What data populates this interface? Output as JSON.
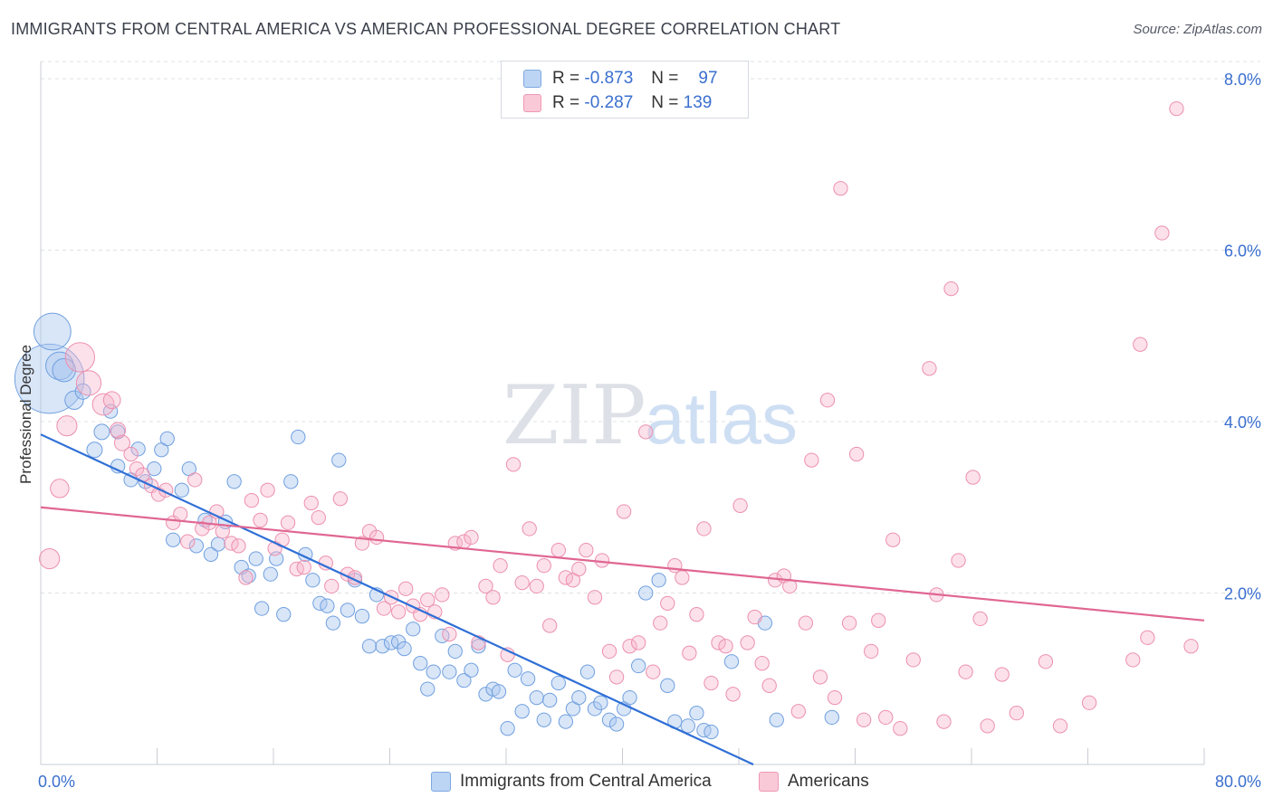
{
  "title": "IMMIGRANTS FROM CENTRAL AMERICA VS AMERICAN PROFESSIONAL DEGREE CORRELATION CHART",
  "source": "Source: ZipAtlas.com",
  "watermark": {
    "zip": "ZIP",
    "atlas": "atlas"
  },
  "stats": [
    {
      "r_label": "R =",
      "r_value": "-0.873",
      "n_label": "N =",
      "n_value": "97",
      "color": "#a9c8f2"
    },
    {
      "r_label": "R =",
      "r_value": "-0.287",
      "n_label": "N =",
      "n_value": "139",
      "color": "#f7bccf"
    }
  ],
  "chart_data": {
    "type": "scatter",
    "title": "IMMIGRANTS FROM CENTRAL AMERICA VS AMERICAN PROFESSIONAL DEGREE CORRELATION CHART",
    "xlabel": "",
    "ylabel": "Professional Degree",
    "xlim": [
      0,
      80
    ],
    "ylim": [
      0,
      8.2
    ],
    "x_tick_labels": [
      "0.0%",
      "80.0%"
    ],
    "y_ticks": [
      2,
      4,
      6,
      8
    ],
    "y_tick_labels": [
      "2.0%",
      "4.0%",
      "6.0%",
      "8.0%"
    ],
    "grid": true,
    "legend_position": "bottom",
    "series": [
      {
        "name": "Immigrants from Central America",
        "color": "#8ab4ea",
        "trend": [
          [
            0,
            3.85
          ],
          [
            49,
            0
          ]
        ],
        "points": [
          [
            0.6,
            4.5,
            4.5
          ],
          [
            0.8,
            5.05,
            2.4
          ],
          [
            1.3,
            4.65,
            1.8
          ],
          [
            1.6,
            4.6,
            1.5
          ],
          [
            2.3,
            4.25,
            1.2
          ],
          [
            2.9,
            4.35,
            1.0
          ],
          [
            3.7,
            3.67,
            1.0
          ],
          [
            4.2,
            3.88,
            1.0
          ],
          [
            4.8,
            4.12,
            0.9
          ],
          [
            5.3,
            3.88,
            0.9
          ],
          [
            5.3,
            3.48,
            0.9
          ],
          [
            6.2,
            3.32,
            0.9
          ],
          [
            6.7,
            3.68,
            0.9
          ],
          [
            7.2,
            3.3,
            0.9
          ],
          [
            7.8,
            3.45,
            0.9
          ],
          [
            8.3,
            3.67,
            0.9
          ],
          [
            8.7,
            3.8,
            0.9
          ],
          [
            9.1,
            2.62,
            0.9
          ],
          [
            9.7,
            3.2,
            0.9
          ],
          [
            10.2,
            3.45,
            0.9
          ],
          [
            10.7,
            2.55,
            0.9
          ],
          [
            11.3,
            2.85,
            0.9
          ],
          [
            11.7,
            2.45,
            0.9
          ],
          [
            12.2,
            2.57,
            0.9
          ],
          [
            12.7,
            2.83,
            0.9
          ],
          [
            13.3,
            3.3,
            0.9
          ],
          [
            13.8,
            2.3,
            0.9
          ],
          [
            14.3,
            2.2,
            0.9
          ],
          [
            14.8,
            2.4,
            0.9
          ],
          [
            15.2,
            1.82,
            0.9
          ],
          [
            15.8,
            2.22,
            0.9
          ],
          [
            16.2,
            2.4,
            0.9
          ],
          [
            16.7,
            1.75,
            0.9
          ],
          [
            17.2,
            3.3,
            0.9
          ],
          [
            17.7,
            3.82,
            0.9
          ],
          [
            18.2,
            2.45,
            0.9
          ],
          [
            18.7,
            2.15,
            0.9
          ],
          [
            19.2,
            1.88,
            0.9
          ],
          [
            19.7,
            1.85,
            0.9
          ],
          [
            20.1,
            1.65,
            0.9
          ],
          [
            20.5,
            3.55,
            0.9
          ],
          [
            21.1,
            1.8,
            0.9
          ],
          [
            21.6,
            2.15,
            0.9
          ],
          [
            22.1,
            1.73,
            0.9
          ],
          [
            22.6,
            1.38,
            0.9
          ],
          [
            23.1,
            1.98,
            0.9
          ],
          [
            23.5,
            1.38,
            0.9
          ],
          [
            24.1,
            1.42,
            0.9
          ],
          [
            24.6,
            1.43,
            0.9
          ],
          [
            25.0,
            1.35,
            0.9
          ],
          [
            25.6,
            1.58,
            0.9
          ],
          [
            26.1,
            1.18,
            0.9
          ],
          [
            26.6,
            0.88,
            0.9
          ],
          [
            27.0,
            1.08,
            0.9
          ],
          [
            27.6,
            1.5,
            0.9
          ],
          [
            28.1,
            1.08,
            0.9
          ],
          [
            28.5,
            1.32,
            0.9
          ],
          [
            29.1,
            0.98,
            0.9
          ],
          [
            29.6,
            1.1,
            0.9
          ],
          [
            30.1,
            1.38,
            0.9
          ],
          [
            30.6,
            0.82,
            0.9
          ],
          [
            31.1,
            0.88,
            0.9
          ],
          [
            31.5,
            0.85,
            0.9
          ],
          [
            32.1,
            0.42,
            0.9
          ],
          [
            32.6,
            1.1,
            0.9
          ],
          [
            33.1,
            0.62,
            0.9
          ],
          [
            33.5,
            1.0,
            0.9
          ],
          [
            34.1,
            0.78,
            0.9
          ],
          [
            34.6,
            0.52,
            0.9
          ],
          [
            35.0,
            0.75,
            0.9
          ],
          [
            35.6,
            0.95,
            0.9
          ],
          [
            36.1,
            0.5,
            0.9
          ],
          [
            36.6,
            0.65,
            0.9
          ],
          [
            37.0,
            0.78,
            0.9
          ],
          [
            37.6,
            1.08,
            0.9
          ],
          [
            38.1,
            0.65,
            0.9
          ],
          [
            38.5,
            0.72,
            0.9
          ],
          [
            39.1,
            0.52,
            0.9
          ],
          [
            39.6,
            0.47,
            0.9
          ],
          [
            40.1,
            0.65,
            0.9
          ],
          [
            40.5,
            0.78,
            0.9
          ],
          [
            41.1,
            1.15,
            0.9
          ],
          [
            41.6,
            2.0,
            0.9
          ],
          [
            42.5,
            2.15,
            0.9
          ],
          [
            43.1,
            0.92,
            0.9
          ],
          [
            43.6,
            0.5,
            0.9
          ],
          [
            44.5,
            0.45,
            0.9
          ],
          [
            45.1,
            0.6,
            0.9
          ],
          [
            45.6,
            0.4,
            0.9
          ],
          [
            46.1,
            0.38,
            0.9
          ],
          [
            47.5,
            1.2,
            0.9
          ],
          [
            49.8,
            1.65,
            0.9
          ],
          [
            50.6,
            0.52,
            0.9
          ],
          [
            54.4,
            0.55,
            0.9
          ]
        ]
      },
      {
        "name": "Americans",
        "color": "#f2a3bd",
        "trend": [
          [
            0,
            3.0
          ],
          [
            80,
            1.68
          ]
        ],
        "points": [
          [
            0.6,
            2.4,
            1.3
          ],
          [
            1.3,
            3.22,
            1.2
          ],
          [
            1.8,
            3.95,
            1.3
          ],
          [
            2.7,
            4.75,
            1.9
          ],
          [
            3.3,
            4.45,
            1.6
          ],
          [
            4.3,
            4.2,
            1.4
          ],
          [
            4.9,
            4.25,
            1.1
          ],
          [
            5.3,
            3.9,
            1.0
          ],
          [
            5.6,
            3.75,
            1.0
          ],
          [
            6.2,
            3.62,
            0.9
          ],
          [
            6.6,
            3.45,
            0.9
          ],
          [
            7.0,
            3.38,
            0.9
          ],
          [
            7.6,
            3.25,
            0.9
          ],
          [
            8.1,
            3.15,
            0.9
          ],
          [
            8.6,
            3.2,
            0.9
          ],
          [
            9.1,
            2.82,
            0.9
          ],
          [
            9.6,
            2.92,
            0.9
          ],
          [
            10.1,
            2.6,
            0.9
          ],
          [
            10.6,
            3.32,
            0.9
          ],
          [
            11.1,
            2.75,
            0.9
          ],
          [
            11.6,
            2.82,
            0.9
          ],
          [
            12.1,
            2.95,
            0.9
          ],
          [
            12.5,
            2.72,
            0.9
          ],
          [
            13.1,
            2.58,
            0.9
          ],
          [
            13.6,
            2.55,
            0.9
          ],
          [
            14.1,
            2.18,
            0.9
          ],
          [
            14.5,
            3.08,
            0.9
          ],
          [
            15.1,
            2.85,
            0.9
          ],
          [
            15.6,
            3.2,
            0.9
          ],
          [
            16.1,
            2.52,
            0.9
          ],
          [
            16.6,
            2.62,
            0.9
          ],
          [
            17.0,
            2.82,
            0.9
          ],
          [
            17.6,
            2.28,
            0.9
          ],
          [
            18.1,
            2.3,
            0.9
          ],
          [
            18.6,
            3.05,
            0.9
          ],
          [
            19.1,
            2.88,
            0.9
          ],
          [
            19.6,
            2.35,
            0.9
          ],
          [
            20.0,
            2.08,
            0.9
          ],
          [
            20.6,
            3.1,
            0.9
          ],
          [
            21.1,
            2.22,
            0.9
          ],
          [
            21.6,
            2.18,
            0.9
          ],
          [
            22.1,
            2.58,
            0.9
          ],
          [
            22.6,
            2.72,
            0.9
          ],
          [
            23.1,
            2.65,
            0.9
          ],
          [
            23.6,
            1.82,
            0.9
          ],
          [
            24.1,
            1.95,
            0.9
          ],
          [
            24.6,
            1.78,
            0.9
          ],
          [
            25.1,
            2.05,
            0.9
          ],
          [
            25.6,
            1.85,
            0.9
          ],
          [
            26.1,
            1.75,
            0.9
          ],
          [
            26.6,
            1.92,
            0.9
          ],
          [
            27.1,
            1.78,
            0.9
          ],
          [
            27.6,
            1.98,
            0.9
          ],
          [
            28.1,
            1.52,
            0.9
          ],
          [
            28.5,
            2.58,
            0.9
          ],
          [
            29.1,
            2.6,
            0.9
          ],
          [
            29.6,
            2.65,
            0.9
          ],
          [
            30.1,
            1.42,
            0.9
          ],
          [
            30.6,
            2.08,
            0.9
          ],
          [
            31.1,
            1.95,
            0.9
          ],
          [
            31.6,
            2.32,
            0.9
          ],
          [
            32.1,
            1.28,
            0.9
          ],
          [
            32.5,
            3.5,
            0.9
          ],
          [
            33.1,
            2.12,
            0.9
          ],
          [
            33.6,
            2.75,
            0.9
          ],
          [
            34.1,
            2.08,
            0.9
          ],
          [
            34.6,
            2.32,
            0.9
          ],
          [
            35.0,
            1.62,
            0.9
          ],
          [
            35.6,
            2.5,
            0.9
          ],
          [
            36.1,
            2.18,
            0.9
          ],
          [
            36.6,
            2.15,
            0.9
          ],
          [
            37.0,
            2.28,
            0.9
          ],
          [
            37.5,
            2.5,
            0.9
          ],
          [
            38.1,
            1.95,
            0.9
          ],
          [
            38.6,
            2.38,
            0.9
          ],
          [
            39.1,
            1.32,
            0.9
          ],
          [
            39.6,
            1.02,
            0.9
          ],
          [
            40.1,
            2.95,
            0.9
          ],
          [
            40.5,
            1.38,
            0.9
          ],
          [
            41.1,
            1.42,
            0.9
          ],
          [
            41.6,
            3.88,
            0.9
          ],
          [
            42.1,
            1.08,
            0.9
          ],
          [
            42.6,
            1.65,
            0.9
          ],
          [
            43.1,
            1.88,
            0.9
          ],
          [
            43.6,
            2.32,
            0.9
          ],
          [
            44.1,
            2.18,
            0.9
          ],
          [
            44.6,
            1.3,
            0.9
          ],
          [
            45.1,
            1.75,
            0.9
          ],
          [
            45.6,
            2.75,
            0.9
          ],
          [
            46.1,
            0.95,
            0.9
          ],
          [
            46.6,
            1.42,
            0.9
          ],
          [
            47.1,
            1.38,
            0.9
          ],
          [
            47.6,
            0.82,
            0.9
          ],
          [
            48.1,
            3.02,
            0.9
          ],
          [
            48.6,
            1.42,
            0.9
          ],
          [
            49.1,
            1.72,
            0.9
          ],
          [
            49.6,
            1.18,
            0.9
          ],
          [
            50.1,
            0.92,
            0.9
          ],
          [
            50.5,
            2.15,
            0.9
          ],
          [
            51.1,
            2.2,
            0.9
          ],
          [
            51.5,
            2.08,
            0.9
          ],
          [
            52.1,
            0.62,
            0.9
          ],
          [
            52.6,
            1.65,
            0.9
          ],
          [
            53.0,
            3.55,
            0.9
          ],
          [
            53.6,
            1.02,
            0.9
          ],
          [
            54.1,
            4.25,
            0.9
          ],
          [
            54.6,
            0.78,
            0.9
          ],
          [
            55.0,
            6.72,
            0.9
          ],
          [
            55.6,
            1.65,
            0.9
          ],
          [
            56.1,
            3.62,
            0.9
          ],
          [
            56.6,
            0.52,
            0.9
          ],
          [
            57.1,
            1.32,
            0.9
          ],
          [
            57.6,
            1.68,
            0.9
          ],
          [
            58.1,
            0.55,
            0.9
          ],
          [
            58.6,
            2.62,
            0.9
          ],
          [
            59.1,
            0.42,
            0.9
          ],
          [
            60.0,
            1.22,
            0.9
          ],
          [
            61.1,
            4.62,
            0.9
          ],
          [
            61.6,
            1.98,
            0.9
          ],
          [
            62.1,
            0.5,
            0.9
          ],
          [
            62.6,
            5.55,
            0.9
          ],
          [
            63.1,
            2.38,
            0.9
          ],
          [
            63.6,
            1.08,
            0.9
          ],
          [
            64.1,
            3.35,
            0.9
          ],
          [
            64.6,
            1.7,
            0.9
          ],
          [
            65.1,
            0.45,
            0.9
          ],
          [
            66.1,
            1.05,
            0.9
          ],
          [
            67.1,
            0.6,
            0.9
          ],
          [
            69.1,
            1.2,
            0.9
          ],
          [
            70.1,
            0.45,
            0.9
          ],
          [
            72.1,
            0.72,
            0.9
          ],
          [
            75.1,
            1.22,
            0.9
          ],
          [
            75.6,
            4.9,
            0.9
          ],
          [
            76.1,
            1.48,
            0.9
          ],
          [
            77.1,
            6.2,
            0.9
          ],
          [
            78.1,
            7.65,
            0.9
          ],
          [
            79.1,
            1.38,
            0.9
          ]
        ]
      }
    ]
  }
}
